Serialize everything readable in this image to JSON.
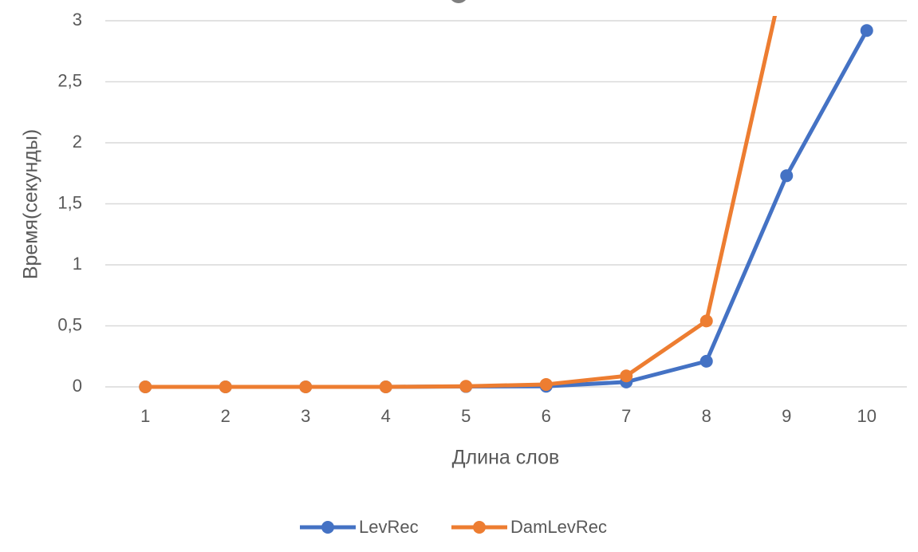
{
  "chart_data": {
    "type": "line",
    "x_label": "Длина слов",
    "y_label": "Время(секунды)",
    "categories": [
      "1",
      "2",
      "3",
      "4",
      "5",
      "6",
      "7",
      "8",
      "9",
      "10"
    ],
    "series": [
      {
        "name": "LevRec",
        "color": "#4472c4",
        "values": [
          0,
          0,
          0,
          0,
          0.003,
          0.005,
          0.04,
          0.21,
          1.73,
          2.92
        ]
      },
      {
        "name": "DamLevRec",
        "color": "#ed7d31",
        "values": [
          0,
          0,
          0,
          0,
          0.005,
          0.02,
          0.09,
          0.54,
          3.47,
          null
        ]
      }
    ],
    "ylim": [
      0,
      3
    ],
    "yticks": [
      0,
      {
        "value": 0.5,
        "label": "0,5"
      },
      1,
      {
        "value": 1.5,
        "label": "1,5"
      },
      2,
      {
        "value": 2.5,
        "label": "2,5"
      },
      3
    ],
    "grid": true,
    "legend": "bottom"
  }
}
